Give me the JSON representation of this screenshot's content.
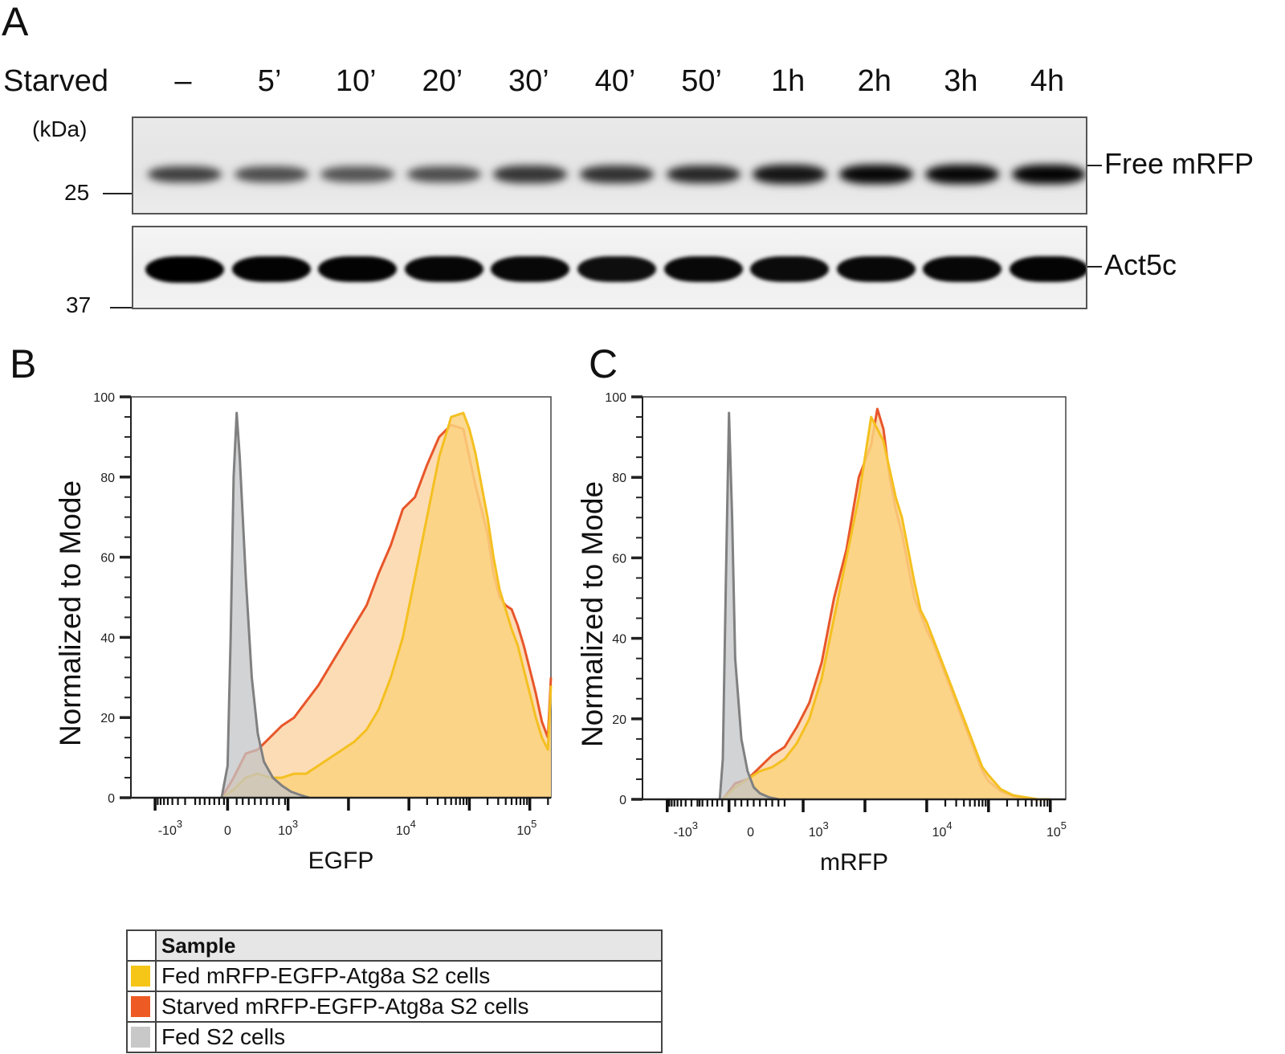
{
  "panel_a": {
    "label": "A",
    "row_label": "Starved",
    "lanes": [
      "–",
      "5’",
      "10’",
      "20’",
      "30’",
      "40’",
      "50’",
      "1h",
      "2h",
      "3h",
      "4h"
    ],
    "unit_label": "(kDa)",
    "markers": [
      {
        "label": "25"
      },
      {
        "label": "37"
      }
    ],
    "blots": [
      {
        "name": "Free mRFP",
        "relative_band_intensity": [
          0.55,
          0.45,
          0.4,
          0.45,
          0.62,
          0.65,
          0.72,
          0.85,
          0.95,
          0.95,
          0.97
        ]
      },
      {
        "name": "Act5c",
        "relative_band_intensity": [
          1.0,
          0.98,
          0.98,
          0.96,
          0.94,
          0.9,
          0.94,
          0.92,
          0.94,
          0.95,
          0.97
        ]
      }
    ]
  },
  "legend": {
    "header": "Sample",
    "items": [
      {
        "label": "Fed mRFP-EGFP-Atg8a S2 cells",
        "color": "#f5c518"
      },
      {
        "label": "Starved mRFP-EGFP-Atg8a S2 cells",
        "color": "#ee5a24"
      },
      {
        "label": "Fed S2 cells",
        "color": "#c8c8c8"
      }
    ]
  },
  "colors": {
    "fed_line": "#f4c020",
    "fed_fill": "#fbd27f",
    "starved_line": "#e8562a",
    "starved_fill": "#fbd6a8",
    "control_line": "#808080",
    "control_fill": "#c3c4c7"
  },
  "chart_data": [
    {
      "panel": "B",
      "type": "area",
      "title": "",
      "xlabel": "EGFP",
      "ylabel": "Normalized to Mode",
      "xscale": "biexponential",
      "xticks": [
        "-10^3",
        "0",
        "10^3",
        "10^4",
        "10^5"
      ],
      "yticks": [
        0,
        20,
        40,
        60,
        80,
        100
      ],
      "ylim": [
        0,
        100
      ],
      "xlim_log_units": [
        -1.6,
        5.35
      ],
      "grid": false,
      "series": [
        {
          "name": "Fed S2 cells",
          "key": "control",
          "x": [
            -0.1,
            0.0,
            0.05,
            0.1,
            0.15,
            0.2,
            0.3,
            0.4,
            0.5,
            0.6,
            0.75,
            0.9,
            1.05,
            1.2,
            1.35
          ],
          "y": [
            0,
            8,
            40,
            80,
            96,
            85,
            55,
            30,
            16,
            9,
            5,
            3,
            1.5,
            0.7,
            0
          ]
        },
        {
          "name": "Fed mRFP-EGFP-Atg8a S2 cells",
          "key": "fed",
          "x": [
            -0.1,
            0.1,
            0.3,
            0.5,
            0.7,
            0.9,
            1.1,
            1.3,
            1.5,
            1.7,
            1.9,
            2.1,
            2.3,
            2.5,
            2.7,
            2.9,
            3.1,
            3.3,
            3.5,
            3.7,
            3.9,
            4.0,
            4.1,
            4.2,
            4.3,
            4.4,
            4.5,
            4.6,
            4.7,
            4.8,
            4.9,
            5.0,
            5.1,
            5.2,
            5.3,
            5.35
          ],
          "y": [
            0,
            2,
            5,
            6,
            5,
            5,
            6,
            6,
            8,
            10,
            12,
            14,
            17,
            22,
            30,
            40,
            55,
            70,
            85,
            95,
            96,
            92,
            86,
            78,
            70,
            60,
            52,
            47,
            42,
            38,
            32,
            26,
            20,
            15,
            12,
            28
          ]
        },
        {
          "name": "Starved mRFP-EGFP-Atg8a S2 cells",
          "key": "starved",
          "x": [
            -0.1,
            0.1,
            0.3,
            0.5,
            0.7,
            0.9,
            1.1,
            1.3,
            1.5,
            1.7,
            1.9,
            2.1,
            2.3,
            2.5,
            2.7,
            2.9,
            3.1,
            3.3,
            3.5,
            3.7,
            3.9,
            4.0,
            4.1,
            4.2,
            4.3,
            4.4,
            4.5,
            4.6,
            4.7,
            4.8,
            4.9,
            5.0,
            5.1,
            5.2,
            5.3,
            5.35
          ],
          "y": [
            0,
            5,
            11,
            12,
            15,
            18,
            20,
            24,
            28,
            33,
            38,
            43,
            48,
            56,
            63,
            72,
            75,
            83,
            90,
            93,
            92,
            85,
            78,
            72,
            66,
            56,
            50,
            48,
            47,
            43,
            38,
            32,
            26,
            19,
            15,
            30
          ]
        }
      ]
    },
    {
      "panel": "C",
      "type": "area",
      "title": "",
      "xlabel": "mRFP",
      "ylabel": "Normalized to Mode",
      "xscale": "biexponential",
      "xticks": [
        "-10^3",
        "0",
        "10^3",
        "10^4",
        "10^5"
      ],
      "yticks": [
        0,
        20,
        40,
        60,
        80,
        100
      ],
      "ylim": [
        0,
        100
      ],
      "xlim_log_units": [
        -1.6,
        5.25
      ],
      "grid": false,
      "series": [
        {
          "name": "Fed S2 cells",
          "key": "control",
          "x": [
            -0.35,
            -0.3,
            -0.25,
            -0.2,
            -0.15,
            -0.1,
            0.0,
            0.1,
            0.2,
            0.3,
            0.45,
            0.6
          ],
          "y": [
            0,
            10,
            55,
            96,
            70,
            35,
            15,
            7,
            3,
            1.5,
            0.5,
            0
          ]
        },
        {
          "name": "Fed mRFP-EGFP-Atg8a S2 cells",
          "key": "fed",
          "x": [
            -0.3,
            -0.1,
            0.1,
            0.3,
            0.5,
            0.7,
            0.9,
            1.1,
            1.3,
            1.5,
            1.7,
            1.9,
            2.0,
            2.1,
            2.2,
            2.3,
            2.4,
            2.5,
            2.6,
            2.7,
            2.8,
            2.9,
            3.0,
            3.1,
            3.2,
            3.3,
            3.4,
            3.5,
            3.6,
            3.7,
            3.8,
            3.9,
            4.0,
            4.2,
            4.4,
            4.6,
            4.8,
            5.0
          ],
          "y": [
            0,
            3,
            5,
            7,
            8,
            10,
            14,
            20,
            30,
            45,
            60,
            75,
            85,
            95,
            92,
            89,
            82,
            75,
            70,
            62,
            54,
            47,
            44,
            40,
            36,
            32,
            28,
            24,
            20,
            16,
            12,
            8,
            6,
            2.5,
            1,
            0.5,
            0,
            0
          ]
        },
        {
          "name": "Starved mRFP-EGFP-Atg8a S2 cells",
          "key": "starved",
          "x": [
            -0.3,
            -0.1,
            0.1,
            0.3,
            0.5,
            0.7,
            0.9,
            1.1,
            1.3,
            1.5,
            1.7,
            1.9,
            2.0,
            2.1,
            2.2,
            2.3,
            2.4,
            2.5,
            2.6,
            2.7,
            2.8,
            2.9,
            3.0,
            3.1,
            3.2,
            3.3,
            3.4,
            3.5,
            3.6,
            3.7,
            3.8,
            3.9,
            4.0,
            4.2,
            4.4,
            4.6,
            4.8,
            5.0
          ],
          "y": [
            0,
            4,
            5,
            8,
            11,
            13,
            18,
            24,
            34,
            50,
            62,
            80,
            84,
            88,
            97,
            92,
            80,
            72,
            66,
            58,
            50,
            46,
            42,
            39,
            35,
            31,
            27,
            23,
            19,
            15,
            11,
            7,
            4.5,
            2,
            0.8,
            0.2,
            0,
            0
          ]
        }
      ]
    }
  ]
}
